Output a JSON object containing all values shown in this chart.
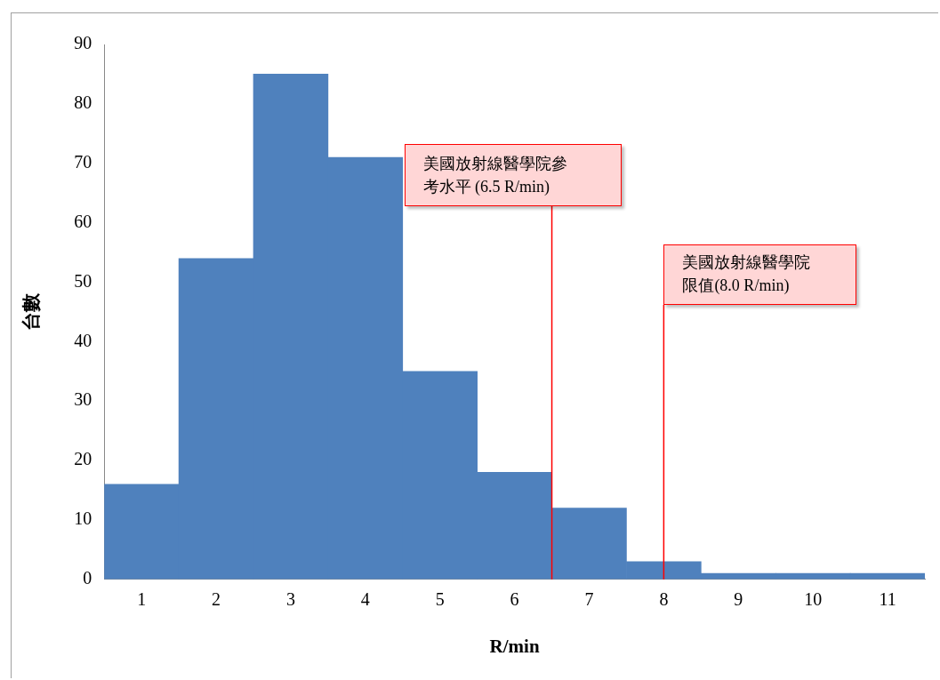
{
  "chart_data": {
    "type": "histogram",
    "xlabel": "R/min",
    "ylabel": "台數",
    "bins": [
      0.5,
      1.5,
      2.5,
      3.5,
      4.5,
      5.5,
      6.5,
      7.5,
      8.5,
      9.5,
      10.5,
      11.5
    ],
    "values": [
      16,
      54,
      85,
      71,
      35,
      18,
      12,
      3,
      1,
      1,
      1
    ],
    "color": "#4f81bd",
    "xlim": [
      0.5,
      11.5
    ],
    "xticks": [
      1,
      2,
      3,
      4,
      5,
      6,
      7,
      8,
      9,
      10,
      11
    ],
    "ylim": [
      0,
      90
    ],
    "yticks": [
      0,
      10,
      20,
      30,
      40,
      50,
      60,
      70,
      80,
      90
    ],
    "grid": false,
    "legend": false,
    "ref_lines": [
      {
        "axis": "x",
        "value": 6.5,
        "label": "美國放射線醫學院參考水平 (6.5 R/min)",
        "color": "#ff0000"
      },
      {
        "axis": "x",
        "value": 8.0,
        "label": "美國放射線醫學院限值(8.0 R/min)",
        "color": "#ff0000"
      }
    ]
  }
}
